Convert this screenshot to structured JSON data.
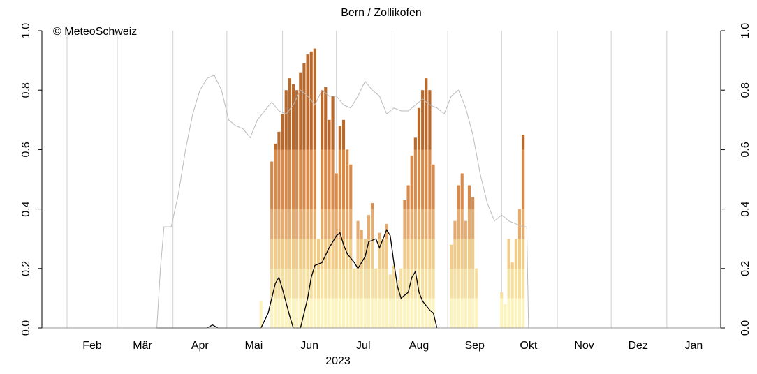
{
  "chart_data": {
    "type": "bar",
    "title": "Bern / Zollikofen",
    "annotation": "© MeteoSchweiz",
    "x_label": "2023",
    "xlim": [
      18,
      396
    ],
    "ylim": [
      0,
      1
    ],
    "yticks": [
      {
        "value": 0,
        "label": "0.0"
      },
      {
        "value": 0.2,
        "label": "0.2"
      },
      {
        "value": 0.4,
        "label": "0.4"
      },
      {
        "value": 0.6,
        "label": "0.6"
      },
      {
        "value": 0.8,
        "label": "0.8"
      },
      {
        "value": 1,
        "label": "1.0"
      }
    ],
    "xgrid": [
      32,
      60,
      91,
      121,
      152,
      182,
      213,
      244,
      274,
      305,
      335,
      366
    ],
    "month_labels": [
      {
        "value": 46,
        "label": "Feb"
      },
      {
        "value": 74,
        "label": "Mär"
      },
      {
        "value": 106,
        "label": "Apr"
      },
      {
        "value": 136,
        "label": "Mai"
      },
      {
        "value": 167,
        "label": "Jun"
      },
      {
        "value": 197,
        "label": "Jul"
      },
      {
        "value": 228,
        "label": "Aug"
      },
      {
        "value": 259,
        "label": "Sep"
      },
      {
        "value": 289,
        "label": "Okt"
      },
      {
        "value": 320,
        "label": "Nov"
      },
      {
        "value": 350,
        "label": "Dez"
      },
      {
        "value": 381,
        "label": "Jan"
      }
    ],
    "bands": [
      {
        "limit": 0.1,
        "color": "#fdf3bf"
      },
      {
        "limit": 0.2,
        "color": "#f5e0a2"
      },
      {
        "limit": 0.3,
        "color": "#f1cb88"
      },
      {
        "limit": 0.4,
        "color": "#e6ab6f"
      },
      {
        "limit": 0.6,
        "color": "#d78a4a"
      },
      {
        "limit": 1,
        "color": "#b8692b"
      }
    ],
    "bars": {
      "x": [
        140,
        142,
        144,
        146,
        148,
        150,
        152,
        154,
        156,
        158,
        160,
        162,
        164,
        166,
        168,
        170,
        172,
        174,
        176,
        178,
        180,
        182,
        184,
        186,
        188,
        190,
        192,
        194,
        196,
        198,
        200,
        202,
        204,
        206,
        208,
        210,
        212,
        214,
        216,
        218,
        220,
        222,
        224,
        226,
        228,
        230,
        232,
        234,
        236,
        238,
        240,
        242,
        244,
        246,
        248,
        250,
        252,
        254,
        256,
        258,
        260,
        262,
        264,
        266,
        268,
        270,
        272,
        274,
        276,
        278,
        280,
        282,
        284,
        286
      ],
      "values": [
        0.09,
        0,
        0,
        0.56,
        0.62,
        0.66,
        0.72,
        0.8,
        0.84,
        0.82,
        0.8,
        0.86,
        0.89,
        0.92,
        0.93,
        0.94,
        0.3,
        0.8,
        0.81,
        0.7,
        0.78,
        0.52,
        0.68,
        0.7,
        0.6,
        0.55,
        0.2,
        0.36,
        0.33,
        0.3,
        0.38,
        0.42,
        0.2,
        0.32,
        0.3,
        0.35,
        0.18,
        0.21,
        0.16,
        0.2,
        0.43,
        0.48,
        0.58,
        0.64,
        0.74,
        0.8,
        0.84,
        0.8,
        0.55,
        0,
        0,
        0,
        0,
        0.28,
        0.36,
        0.48,
        0.52,
        0.36,
        0.48,
        0.44,
        0.2,
        0,
        0,
        0,
        0,
        0,
        0,
        0.12,
        0.08,
        0.3,
        0.22,
        0.3,
        0.4,
        0.65
      ]
    },
    "series": [
      {
        "color": "#bbbbbb",
        "x": [
          82,
          84,
          86,
          90,
          94,
          98,
          102,
          106,
          110,
          114,
          118,
          122,
          126,
          130,
          134,
          138,
          142,
          146,
          150,
          154,
          158,
          162,
          166,
          170,
          174,
          178,
          182,
          186,
          190,
          194,
          198,
          202,
          206,
          210,
          214,
          218,
          222,
          226,
          230,
          234,
          238,
          242,
          246,
          250,
          254,
          258,
          262,
          266,
          270,
          274,
          278,
          282,
          286,
          288,
          289
        ],
        "values": [
          0,
          0.2,
          0.34,
          0.34,
          0.45,
          0.6,
          0.72,
          0.8,
          0.84,
          0.85,
          0.8,
          0.7,
          0.68,
          0.67,
          0.64,
          0.7,
          0.73,
          0.76,
          0.73,
          0.72,
          0.75,
          0.8,
          0.78,
          0.75,
          0.8,
          0.78,
          0.78,
          0.75,
          0.74,
          0.78,
          0.83,
          0.8,
          0.78,
          0.72,
          0.74,
          0.73,
          0.73,
          0.75,
          0.77,
          0.75,
          0.74,
          0.72,
          0.78,
          0.8,
          0.74,
          0.65,
          0.52,
          0.42,
          0.36,
          0.38,
          0.36,
          0.35,
          0.34,
          0.34,
          0
        ]
      },
      {
        "color": "#000000",
        "x": [
          82,
          110,
          113,
          116,
          140,
          144,
          148,
          150,
          152,
          156,
          158,
          162,
          166,
          168,
          170,
          174,
          178,
          182,
          184,
          186,
          188,
          192,
          194,
          198,
          200,
          204,
          206,
          208,
          210,
          212,
          214,
          216,
          218,
          222,
          224,
          226,
          228,
          230,
          234,
          236,
          238
        ],
        "values": [
          0,
          0,
          0.01,
          0,
          0,
          0.05,
          0.15,
          0.17,
          0.13,
          0.04,
          0,
          0,
          0.1,
          0.17,
          0.21,
          0.22,
          0.27,
          0.31,
          0.32,
          0.28,
          0.25,
          0.22,
          0.2,
          0.24,
          0.29,
          0.3,
          0.27,
          0.3,
          0.33,
          0.31,
          0.22,
          0.14,
          0.1,
          0.12,
          0.17,
          0.19,
          0.12,
          0.09,
          0.06,
          0.05,
          0
        ]
      }
    ]
  }
}
